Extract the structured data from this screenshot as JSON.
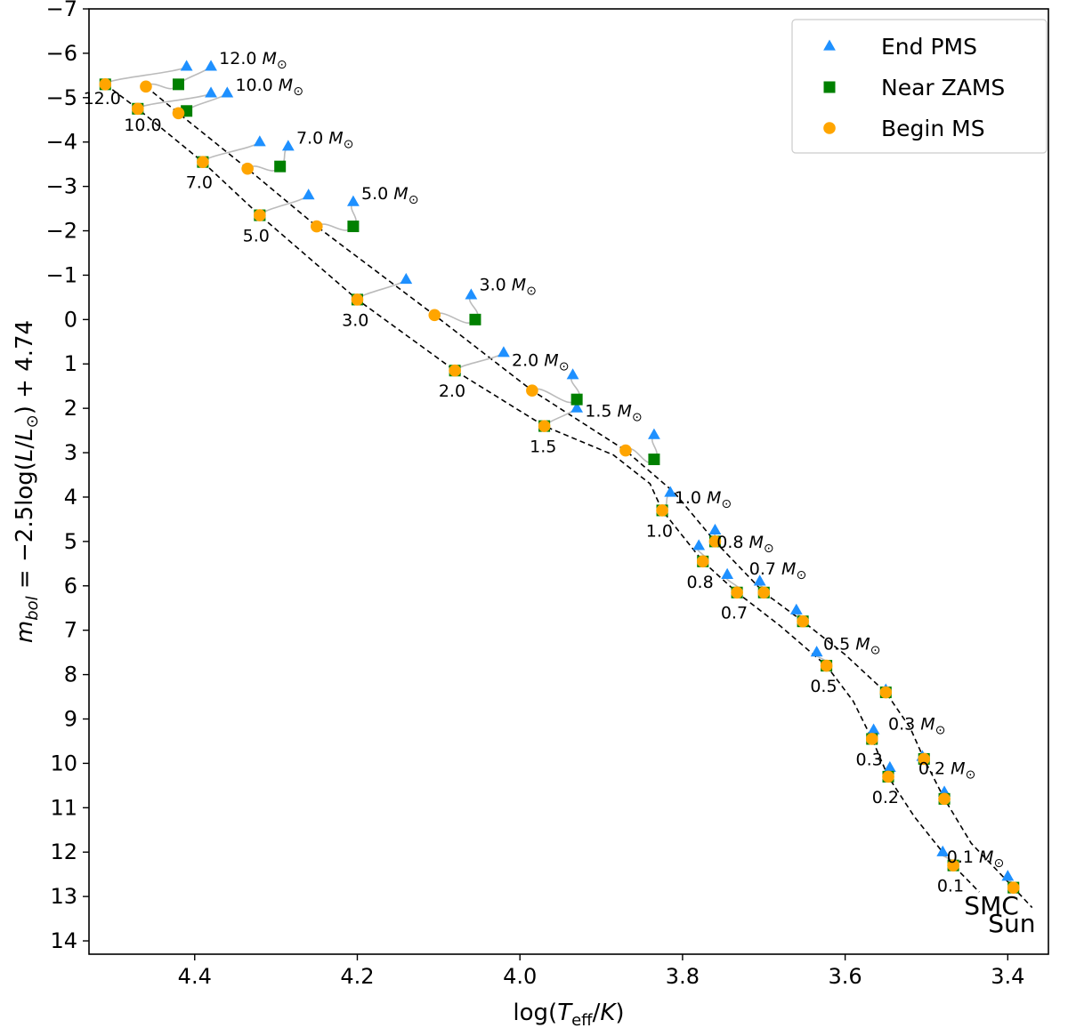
{
  "chart_data": {
    "type": "scatter",
    "title": "",
    "xlabel_parts": [
      "log(",
      "T",
      "eff",
      "/",
      "K",
      ")"
    ],
    "ylabel_parts": [
      "m",
      "bol",
      " = −2.5log(",
      "L",
      "/",
      "L",
      "⊙",
      ") + 4.74"
    ],
    "xlim": [
      4.53,
      3.35
    ],
    "ylim": [
      14.3,
      -7
    ],
    "x_ticks": [
      4.4,
      4.2,
      4.0,
      3.8,
      3.6,
      3.4
    ],
    "x_tick_labels": [
      "4.4",
      "4.2",
      "4.0",
      "3.8",
      "3.6",
      "3.4"
    ],
    "y_ticks": [
      -7,
      -6,
      -5,
      -4,
      -3,
      -2,
      -1,
      0,
      1,
      2,
      3,
      4,
      5,
      6,
      7,
      8,
      9,
      10,
      11,
      12,
      13,
      14
    ],
    "y_tick_labels": [
      "−7",
      "−6",
      "−5",
      "−4",
      "−3",
      "−2",
      "−1",
      "0",
      "1",
      "2",
      "3",
      "4",
      "5",
      "6",
      "7",
      "8",
      "9",
      "10",
      "11",
      "12",
      "13",
      "14"
    ],
    "colors": {
      "end_pms": "#1e90ff",
      "near_zams": "#008000",
      "begin_ms": "#ffa500",
      "track": "#bbbbbb",
      "dashed": "#000000"
    },
    "legend": {
      "placement": "top-right",
      "entries": [
        {
          "label": "End PMS",
          "marker": "triangle",
          "color": "#1e90ff"
        },
        {
          "label": "Near ZAMS",
          "marker": "square",
          "color": "#008000"
        },
        {
          "label": "Begin MS",
          "marker": "circle",
          "color": "#ffa500"
        }
      ]
    },
    "sequence_labels": [
      {
        "text": "SMC",
        "x": 3.42,
        "y": 13.2
      },
      {
        "text": "Sun",
        "x": 3.395,
        "y": 13.6
      }
    ],
    "series": [
      {
        "name": "SMC",
        "points": [
          {
            "mass": "12.0",
            "end_pms": [
              4.41,
              -5.7
            ],
            "near_zams": [
              4.51,
              -5.3
            ],
            "begin_ms": [
              4.51,
              -5.3
            ],
            "label": "12.0",
            "label_pos": [
              4.537,
              -5.0
            ]
          },
          {
            "mass": "10.0",
            "end_pms": [
              4.38,
              -5.1
            ],
            "near_zams": [
              4.47,
              -4.75
            ],
            "begin_ms": [
              4.47,
              -4.75
            ],
            "label": "10.0",
            "label_pos": [
              4.487,
              -4.4
            ]
          },
          {
            "mass": "7.0",
            "end_pms": [
              4.32,
              -4.0
            ],
            "near_zams": [
              4.39,
              -3.55
            ],
            "begin_ms": [
              4.39,
              -3.55
            ],
            "label": "7.0",
            "label_pos": [
              4.411,
              -3.1
            ]
          },
          {
            "mass": "5.0",
            "end_pms": [
              4.26,
              -2.8
            ],
            "near_zams": [
              4.32,
              -2.35
            ],
            "begin_ms": [
              4.32,
              -2.35
            ],
            "label": "5.0",
            "label_pos": [
              4.341,
              -1.9
            ]
          },
          {
            "mass": "3.0",
            "end_pms": [
              4.14,
              -0.9
            ],
            "near_zams": [
              4.2,
              -0.45
            ],
            "begin_ms": [
              4.2,
              -0.45
            ],
            "label": "3.0",
            "label_pos": [
              4.219,
              0.0
            ]
          },
          {
            "mass": "2.0",
            "end_pms": [
              4.02,
              0.75
            ],
            "near_zams": [
              4.08,
              1.15
            ],
            "begin_ms": [
              4.08,
              1.15
            ],
            "label": "2.0",
            "label_pos": [
              4.1,
              1.6
            ]
          },
          {
            "mass": "1.5",
            "end_pms": [
              3.93,
              2.0
            ],
            "near_zams": [
              3.97,
              2.4
            ],
            "begin_ms": [
              3.97,
              2.4
            ],
            "label": "1.5",
            "label_pos": [
              3.988,
              2.85
            ]
          },
          {
            "mass": "1.0",
            "end_pms": [
              3.815,
              3.9
            ],
            "near_zams": [
              3.825,
              4.3
            ],
            "begin_ms": [
              3.825,
              4.3
            ],
            "label": "1.0",
            "label_pos": [
              3.845,
              4.75
            ]
          },
          {
            "mass": "0.8",
            "end_pms": [
              3.78,
              5.1
            ],
            "near_zams": [
              3.775,
              5.45
            ],
            "begin_ms": [
              3.775,
              5.45
            ],
            "label": "0.8",
            "label_pos": [
              3.795,
              5.9
            ]
          },
          {
            "mass": "0.7",
            "end_pms": [
              3.745,
              5.75
            ],
            "near_zams": [
              3.733,
              6.15
            ],
            "begin_ms": [
              3.733,
              6.15
            ],
            "label": "0.7",
            "label_pos": [
              3.753,
              6.6
            ]
          },
          {
            "mass": "0.5",
            "end_pms": [
              3.635,
              7.5
            ],
            "near_zams": [
              3.623,
              7.8
            ],
            "begin_ms": [
              3.623,
              7.8
            ],
            "label": "0.5",
            "label_pos": [
              3.643,
              8.25
            ]
          },
          {
            "mass": "0.3",
            "end_pms": [
              3.565,
              9.25
            ],
            "near_zams": [
              3.567,
              9.45
            ],
            "begin_ms": [
              3.567,
              9.45
            ],
            "label": "0.3",
            "label_pos": [
              3.587,
              9.9
            ]
          },
          {
            "mass": "0.2",
            "end_pms": [
              3.545,
              10.1
            ],
            "near_zams": [
              3.547,
              10.3
            ],
            "begin_ms": [
              3.547,
              10.3
            ],
            "label": "0.2",
            "label_pos": [
              3.567,
              10.75
            ]
          },
          {
            "mass": "0.1",
            "end_pms": [
              3.48,
              12.0
            ],
            "near_zams": [
              3.467,
              12.3
            ],
            "begin_ms": [
              3.467,
              12.3
            ],
            "label": "0.1",
            "label_pos": [
              3.487,
              12.75
            ]
          }
        ]
      },
      {
        "name": "Sun",
        "points": [
          {
            "mass": "12.0",
            "end_pms": [
              4.38,
              -5.7
            ],
            "near_zams": [
              4.42,
              -5.3
            ],
            "begin_ms": [
              4.46,
              -5.25
            ],
            "label": "12.0",
            "label_pos": [
              4.37,
              -5.9
            ]
          },
          {
            "mass": "10.0",
            "end_pms": [
              4.36,
              -5.1
            ],
            "near_zams": [
              4.41,
              -4.7
            ],
            "begin_ms": [
              4.42,
              -4.65
            ],
            "label": "10.0",
            "label_pos": [
              4.35,
              -5.3
            ]
          },
          {
            "mass": "7.0",
            "end_pms": [
              4.285,
              -3.9
            ],
            "near_zams": [
              4.295,
              -3.45
            ],
            "begin_ms": [
              4.335,
              -3.4
            ],
            "label": "7.0",
            "label_pos": [
              4.275,
              -4.1
            ]
          },
          {
            "mass": "5.0",
            "end_pms": [
              4.205,
              -2.65
            ],
            "near_zams": [
              4.205,
              -2.1
            ],
            "begin_ms": [
              4.25,
              -2.1
            ],
            "label": "5.0",
            "label_pos": [
              4.195,
              -2.85
            ]
          },
          {
            "mass": "3.0",
            "end_pms": [
              4.06,
              -0.55
            ],
            "near_zams": [
              4.055,
              0.0
            ],
            "begin_ms": [
              4.105,
              -0.1
            ],
            "label": "3.0",
            "label_pos": [
              4.05,
              -0.8
            ]
          },
          {
            "mass": "2.0",
            "end_pms": [
              3.935,
              1.25
            ],
            "near_zams": [
              3.93,
              1.8
            ],
            "begin_ms": [
              3.985,
              1.6
            ],
            "label": "2.0",
            "label_pos": [
              4.01,
              0.9
            ]
          },
          {
            "mass": "1.5",
            "end_pms": [
              3.835,
              2.6
            ],
            "near_zams": [
              3.835,
              3.15
            ],
            "begin_ms": [
              3.87,
              2.95
            ],
            "label": "1.5",
            "label_pos": [
              3.92,
              2.05
            ]
          },
          {
            "mass": "1.0",
            "end_pms": [
              3.76,
              4.75
            ],
            "near_zams": [
              3.76,
              5.0
            ],
            "begin_ms": [
              3.76,
              5.0
            ],
            "label": "1.0",
            "label_pos": [
              3.81,
              4.0
            ]
          },
          {
            "mass": "0.8",
            "end_pms": [
              3.705,
              5.9
            ],
            "near_zams": [
              3.7,
              6.15
            ],
            "begin_ms": [
              3.7,
              6.15
            ],
            "label": "0.8",
            "label_pos": [
              3.758,
              5.0
            ]
          },
          {
            "mass": "0.7",
            "end_pms": [
              3.66,
              6.55
            ],
            "near_zams": [
              3.652,
              6.8
            ],
            "begin_ms": [
              3.652,
              6.8
            ],
            "label": "0.7",
            "label_pos": [
              3.718,
              5.6
            ]
          },
          {
            "mass": "0.5",
            "end_pms": [
              3.55,
              8.35
            ],
            "near_zams": [
              3.55,
              8.4
            ],
            "begin_ms": [
              3.55,
              8.4
            ],
            "label": "0.5",
            "label_pos": [
              3.627,
              7.3
            ]
          },
          {
            "mass": "0.3",
            "end_pms": [
              3.505,
              9.85
            ],
            "near_zams": [
              3.503,
              9.9
            ],
            "begin_ms": [
              3.503,
              9.9
            ],
            "label": "0.3",
            "label_pos": [
              3.547,
              9.1
            ]
          },
          {
            "mass": "0.2",
            "end_pms": [
              3.478,
              10.65
            ],
            "near_zams": [
              3.478,
              10.8
            ],
            "begin_ms": [
              3.478,
              10.8
            ],
            "label": "0.2",
            "label_pos": [
              3.51,
              10.1
            ]
          },
          {
            "mass": "0.1",
            "end_pms": [
              3.4,
              12.55
            ],
            "near_zams": [
              3.393,
              12.8
            ],
            "begin_ms": [
              3.393,
              12.8
            ],
            "label": "0.1",
            "label_pos": [
              3.475,
              12.1
            ]
          }
        ]
      }
    ],
    "dashed_lines": [
      {
        "name": "SMC sequence",
        "points": [
          [
            4.51,
            -5.3
          ],
          [
            4.47,
            -4.75
          ],
          [
            4.39,
            -3.55
          ],
          [
            4.32,
            -2.35
          ],
          [
            4.2,
            -0.45
          ],
          [
            4.08,
            1.15
          ],
          [
            3.97,
            2.4
          ],
          [
            3.885,
            3.05
          ],
          [
            3.84,
            3.7
          ],
          [
            3.825,
            4.3
          ],
          [
            3.775,
            5.45
          ],
          [
            3.733,
            6.15
          ],
          [
            3.68,
            6.9
          ],
          [
            3.623,
            7.8
          ],
          [
            3.59,
            8.6
          ],
          [
            3.567,
            9.45
          ],
          [
            3.547,
            10.3
          ],
          [
            3.515,
            11.2
          ],
          [
            3.467,
            12.3
          ],
          [
            3.435,
            12.9
          ]
        ]
      },
      {
        "name": "Sun sequence",
        "points": [
          [
            4.46,
            -5.25
          ],
          [
            4.42,
            -4.65
          ],
          [
            4.335,
            -3.4
          ],
          [
            4.25,
            -2.1
          ],
          [
            4.105,
            -0.1
          ],
          [
            3.985,
            1.6
          ],
          [
            3.87,
            2.95
          ],
          [
            3.81,
            3.9
          ],
          [
            3.76,
            5.0
          ],
          [
            3.7,
            6.15
          ],
          [
            3.652,
            6.8
          ],
          [
            3.6,
            7.55
          ],
          [
            3.55,
            8.4
          ],
          [
            3.52,
            9.2
          ],
          [
            3.503,
            9.9
          ],
          [
            3.478,
            10.8
          ],
          [
            3.445,
            11.8
          ],
          [
            3.393,
            12.8
          ],
          [
            3.37,
            13.25
          ]
        ]
      }
    ]
  }
}
